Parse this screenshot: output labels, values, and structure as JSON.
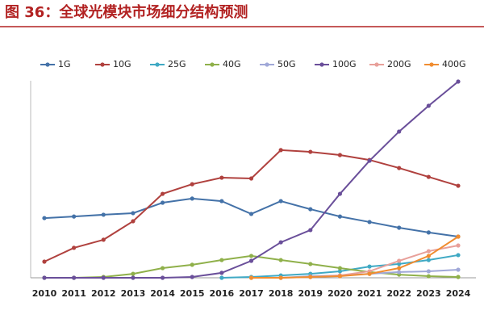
{
  "chart_data": {
    "type": "line",
    "title": "图 36：全球光模块市场细分结构预测",
    "categories": [
      "2010",
      "2011",
      "2012",
      "2013",
      "2014",
      "2015",
      "2016",
      "2017",
      "2018",
      "2019",
      "2020",
      "2021",
      "2022",
      "2023",
      "2024"
    ],
    "ylim": [
      0,
      100
    ],
    "series": [
      {
        "name": "1G",
        "color": "#4472a8",
        "values": [
          30.3,
          31.1,
          32,
          32.8,
          38.1,
          40.2,
          38.9,
          32.4,
          38.9,
          34.8,
          31.1,
          28.3,
          25.4,
          23,
          20.9
        ]
      },
      {
        "name": "10G",
        "color": "#b0413e",
        "values": [
          8.2,
          15.2,
          19.3,
          28.7,
          42.6,
          47.5,
          50.8,
          50.4,
          64.8,
          63.9,
          62.3,
          59.8,
          55.7,
          51.2,
          46.7
        ]
      },
      {
        "name": "25G",
        "color": "#3fa9c4",
        "values": [
          null,
          null,
          null,
          null,
          null,
          null,
          0,
          0.4,
          1.2,
          2,
          3.3,
          5.7,
          7,
          9,
          11.5
        ]
      },
      {
        "name": "40G",
        "color": "#8fb04a",
        "values": [
          0,
          0,
          0.4,
          2,
          4.9,
          6.6,
          9,
          11.1,
          9,
          7,
          4.9,
          2.9,
          1.6,
          0.8,
          0.4
        ]
      },
      {
        "name": "50G",
        "color": "#a0a8d8",
        "values": [
          null,
          null,
          null,
          null,
          null,
          null,
          null,
          null,
          0,
          0.8,
          1.2,
          2,
          2.9,
          3.3,
          4.1
        ]
      },
      {
        "name": "100G",
        "color": "#6a4f9a",
        "values": [
          0,
          0,
          0,
          0,
          0,
          0.4,
          2.5,
          8.6,
          18,
          24.2,
          42.6,
          59.4,
          74.2,
          87.3,
          99.6
        ]
      },
      {
        "name": "200G",
        "color": "#e8a09a",
        "values": [
          null,
          null,
          null,
          null,
          null,
          null,
          null,
          0,
          0,
          0.4,
          1.2,
          3.3,
          8.6,
          13.5,
          16.4
        ]
      },
      {
        "name": "400G",
        "color": "#f08c30",
        "values": [
          null,
          null,
          null,
          null,
          null,
          null,
          null,
          0,
          0,
          0.4,
          0.8,
          2,
          4.9,
          11.1,
          20.9
        ]
      }
    ]
  }
}
